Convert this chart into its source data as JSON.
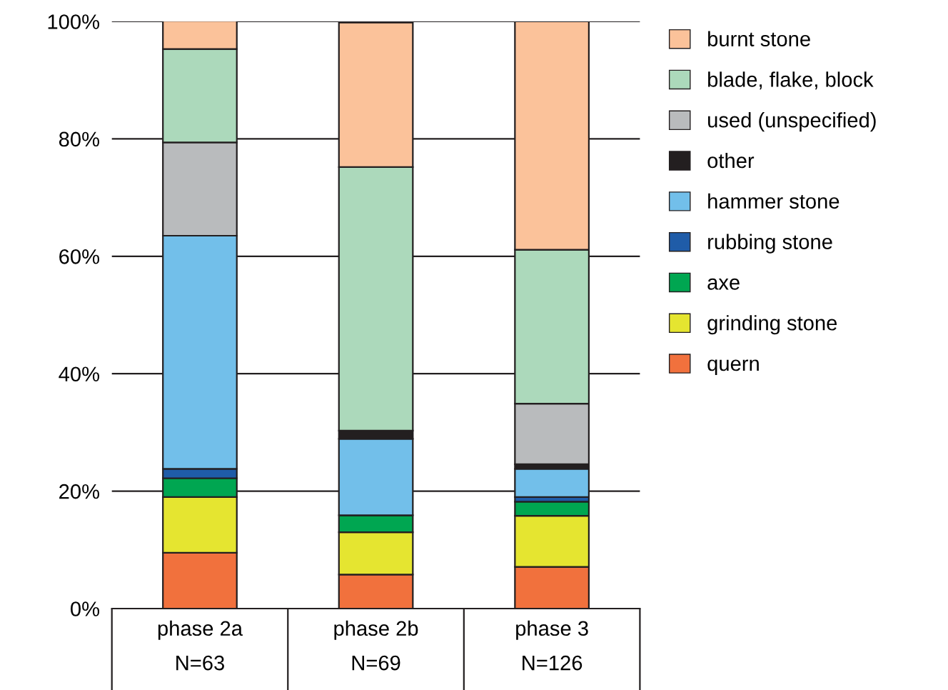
{
  "chart_data": {
    "type": "bar",
    "stacked": true,
    "categories": [
      "phase 2a\nN=63",
      "phase 2b\nN=69",
      "phase 3\nN=126"
    ],
    "series": [
      {
        "name": "quern",
        "color": "#f1713d",
        "values": [
          9.5,
          5.8,
          7.1
        ]
      },
      {
        "name": "grinding stone",
        "color": "#e5e530",
        "values": [
          9.5,
          7.2,
          8.7
        ]
      },
      {
        "name": "axe",
        "color": "#00a651",
        "values": [
          3.2,
          2.9,
          2.4
        ]
      },
      {
        "name": "rubbing stone",
        "color": "#1f5ca8",
        "values": [
          1.6,
          0,
          0.8
        ]
      },
      {
        "name": "hammer stone",
        "color": "#72bfea",
        "values": [
          39.7,
          13.0,
          4.8
        ]
      },
      {
        "name": "other",
        "color": "#231f20",
        "values": [
          0,
          1.4,
          0.8
        ]
      },
      {
        "name": "used (unspecified)",
        "color": "#b9bbbd",
        "values": [
          15.9,
          0,
          10.3
        ]
      },
      {
        "name": "blade, flake, block",
        "color": "#acd9bb",
        "values": [
          15.9,
          44.9,
          26.2
        ]
      },
      {
        "name": "burnt stone",
        "color": "#fbc29a",
        "values": [
          4.8,
          24.6,
          38.9
        ]
      }
    ],
    "ylim": [
      0,
      100
    ],
    "yticks": [
      {
        "value": 0,
        "label": "0%"
      },
      {
        "value": 20,
        "label": "20%"
      },
      {
        "value": 40,
        "label": "40%"
      },
      {
        "value": 60,
        "label": "60%"
      },
      {
        "value": 80,
        "label": "80%"
      },
      {
        "value": 100,
        "label": "100%"
      }
    ],
    "grid": "y",
    "legend": "right"
  }
}
